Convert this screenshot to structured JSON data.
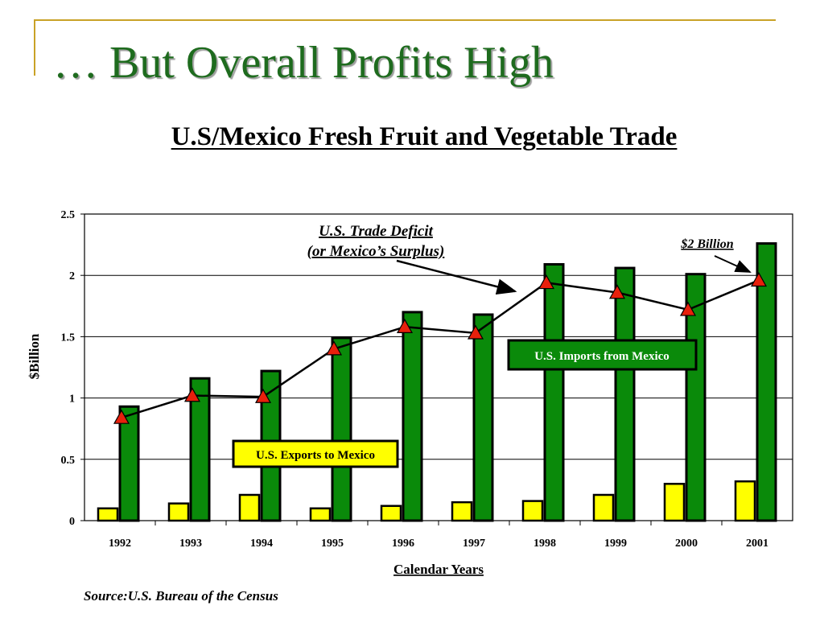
{
  "slide": {
    "title": "… But Overall Profits High",
    "source": "Source:U.S. Bureau of the Census"
  },
  "colors": {
    "imports": "#0a8a0a",
    "exports": "#ffff00",
    "deficit_marker": "#e8200c",
    "accent_rule": "#c9a227",
    "title_green": "#1e6b1e"
  },
  "chart_data": {
    "type": "bar",
    "title": "U.S/Mexico Fresh Fruit and Vegetable Trade",
    "xlabel": "Calendar Years",
    "ylabel": "$Billion",
    "ylim": [
      0,
      2.5
    ],
    "yticks": [
      "0",
      "0.5",
      "1",
      "1.5",
      "2",
      "2.5"
    ],
    "grid": true,
    "categories": [
      "1992",
      "1993",
      "1994",
      "1995",
      "1996",
      "1997",
      "1998",
      "1999",
      "2000",
      "2001"
    ],
    "series": [
      {
        "name": "U.S. Exports to Mexico",
        "kind": "bar",
        "color": "#ffff00",
        "values": [
          0.1,
          0.14,
          0.21,
          0.1,
          0.12,
          0.15,
          0.16,
          0.21,
          0.3,
          0.32
        ]
      },
      {
        "name": "U.S. Imports from Mexico",
        "kind": "bar",
        "color": "#0a8a0a",
        "values": [
          0.93,
          1.16,
          1.22,
          1.49,
          1.7,
          1.68,
          2.09,
          2.06,
          2.01,
          2.26
        ]
      },
      {
        "name": "U.S. Trade Deficit (or Mexico’s Surplus)",
        "kind": "line",
        "color": "#e8200c",
        "values": [
          0.84,
          1.02,
          1.01,
          1.4,
          1.58,
          1.53,
          1.94,
          1.86,
          1.72,
          1.96
        ]
      }
    ],
    "annotations": {
      "deficit_line1": "U.S. Trade Deficit",
      "deficit_line2": "(or Mexico’s Surplus)",
      "final_value": "$2 Billion",
      "imports_label": "U.S. Imports from Mexico",
      "exports_label": "U.S. Exports to Mexico"
    }
  }
}
